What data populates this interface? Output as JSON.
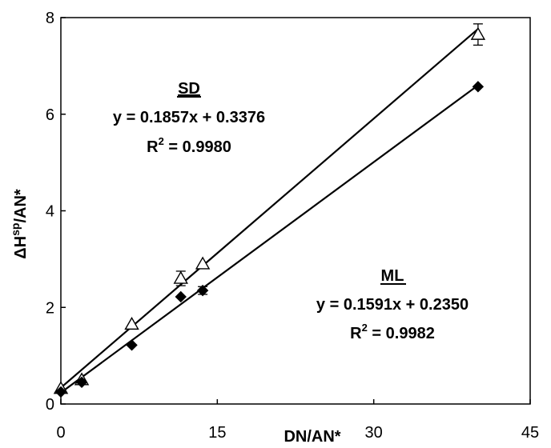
{
  "chart_data": {
    "type": "scatter",
    "xlabel": "DN/AN*",
    "ylabel": {
      "prefix": "ΔH",
      "sup": "sp",
      "suffix": "/AN*"
    },
    "xlim": [
      0,
      45
    ],
    "ylim": [
      0,
      8
    ],
    "xticks": [
      0,
      15,
      30,
      45
    ],
    "yticks": [
      0,
      2,
      4,
      6,
      8
    ],
    "grid": false,
    "series": [
      {
        "name": "SD",
        "marker": "open-triangle",
        "x": [
          0,
          2.0,
          6.8,
          11.5,
          13.6,
          40.0
        ],
        "y": [
          0.32,
          0.5,
          1.65,
          2.6,
          2.9,
          7.65
        ],
        "err": [
          0,
          0,
          0,
          0.15,
          0,
          0.22
        ],
        "fit": {
          "slope": 0.1857,
          "intercept": 0.3376
        },
        "annotation": {
          "label": "SD",
          "equation": "y = 0.1857x + 0.3376",
          "r2_prefix": "R",
          "r2_sup": "2",
          "r2_value": " = 0.9980"
        }
      },
      {
        "name": "ML",
        "marker": "filled-diamond",
        "x": [
          0,
          2.0,
          6.8,
          11.5,
          13.6,
          40.0
        ],
        "y": [
          0.25,
          0.45,
          1.22,
          2.22,
          2.35,
          6.57
        ],
        "err": [
          0,
          0,
          0,
          0,
          0.08,
          0
        ],
        "fit": {
          "slope": 0.1591,
          "intercept": 0.235
        },
        "annotation": {
          "label": "ML",
          "equation": "y = 0.1591x + 0.2350",
          "r2_prefix": "R",
          "r2_sup": "2",
          "r2_value": " = 0.9982"
        }
      }
    ]
  }
}
